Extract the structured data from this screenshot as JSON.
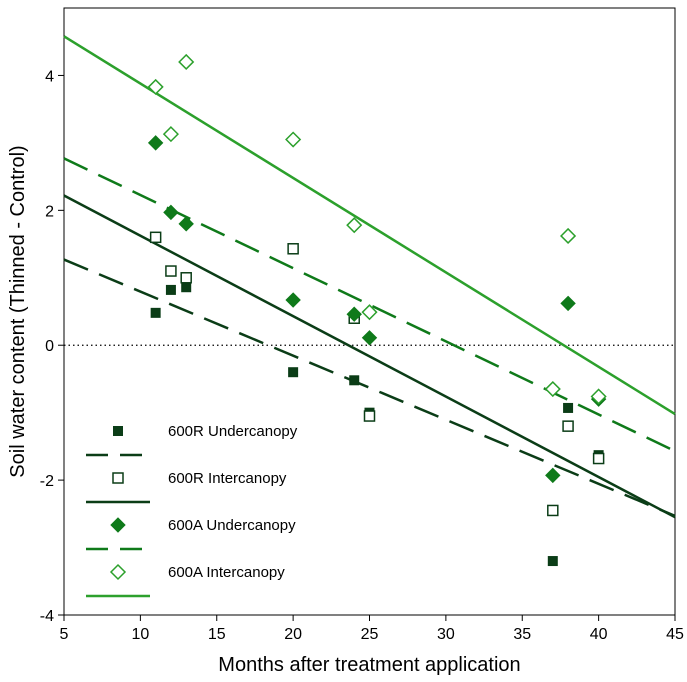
{
  "chart_data": {
    "type": "scatter",
    "xlabel": "Months after treatment application",
    "ylabel": "Soil water content (Thinned - Control)",
    "xlim": [
      5,
      45
    ],
    "ylim": [
      -4,
      5
    ],
    "xticks": [
      5,
      10,
      15,
      20,
      25,
      30,
      35,
      40,
      45
    ],
    "yticks": [
      -4,
      -2,
      0,
      2,
      4
    ],
    "yticks_extra": [],
    "grid": false,
    "legend_position": "bottom-left",
    "reference_line": {
      "y": 0,
      "style": "dotted"
    },
    "colors": {
      "dark": "#0b3d17",
      "medium": "#0f7a1a",
      "light": "#2ca02c"
    },
    "series": [
      {
        "name": "600R Undercanopy",
        "marker": "square-filled",
        "color": "#0b3d17",
        "points": [
          [
            11,
            0.48
          ],
          [
            12,
            0.82
          ],
          [
            13,
            0.86
          ],
          [
            20,
            -0.4
          ],
          [
            24,
            -0.52
          ],
          [
            25,
            -1.0
          ],
          [
            37,
            -3.2
          ],
          [
            38,
            -0.93
          ],
          [
            40,
            -1.63
          ]
        ],
        "fit": {
          "style": "dashed",
          "x": [
            5,
            45
          ],
          "y": [
            1.27,
            -2.53
          ]
        }
      },
      {
        "name": "600R Intercanopy",
        "marker": "square-open",
        "color": "#0b3d17",
        "points": [
          [
            11,
            1.6
          ],
          [
            12,
            1.1
          ],
          [
            13,
            1.0
          ],
          [
            20,
            1.43
          ],
          [
            24,
            0.4
          ],
          [
            25,
            -1.05
          ],
          [
            37,
            -2.45
          ],
          [
            38,
            -1.2
          ],
          [
            40,
            -1.68
          ]
        ],
        "fit": {
          "style": "solid",
          "x": [
            5,
            45
          ],
          "y": [
            2.22,
            -2.55
          ]
        }
      },
      {
        "name": "600A Undercanopy",
        "marker": "diamond-filled",
        "color": "#0f7a1a",
        "points": [
          [
            11,
            3.0
          ],
          [
            12,
            1.97
          ],
          [
            13,
            1.8
          ],
          [
            20,
            0.67
          ],
          [
            24,
            0.46
          ],
          [
            25,
            0.11
          ],
          [
            37,
            -1.93
          ],
          [
            38,
            0.62
          ],
          [
            40,
            -0.8
          ]
        ],
        "fit": {
          "style": "dashed",
          "x": [
            5,
            45
          ],
          "y": [
            2.77,
            -1.57
          ]
        }
      },
      {
        "name": "600A Intercanopy",
        "marker": "diamond-open",
        "color": "#2ca02c",
        "points": [
          [
            11,
            3.83
          ],
          [
            12,
            3.13
          ],
          [
            13,
            4.2
          ],
          [
            20,
            3.05
          ],
          [
            24,
            1.78
          ],
          [
            25,
            0.49
          ],
          [
            37,
            -0.65
          ],
          [
            38,
            1.62
          ],
          [
            40,
            -0.76
          ]
        ],
        "fit": {
          "style": "solid",
          "x": [
            5,
            45
          ],
          "y": [
            4.58,
            -1.02
          ]
        }
      }
    ]
  }
}
